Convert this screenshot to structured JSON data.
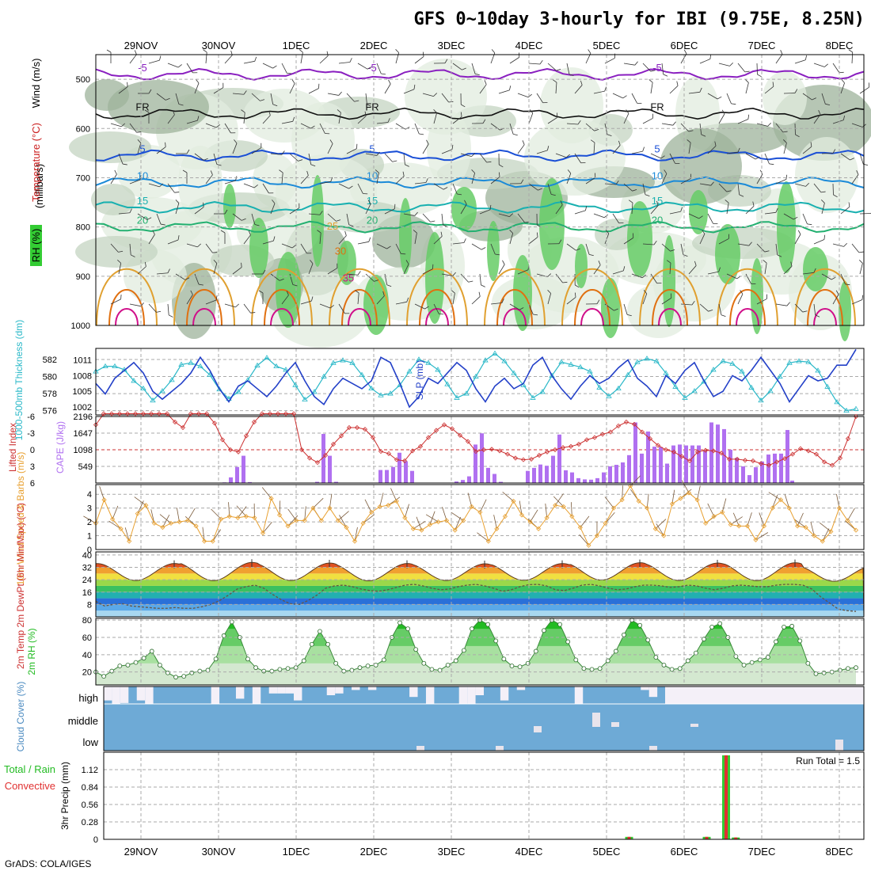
{
  "title": "GFS 0~10day 3-hourly for IBI (9.75E, 8.25N)",
  "credit": "GrADS: COLA/IGES",
  "colors": {
    "temp500": "#8a1fc0",
    "freeze": "#111111",
    "t5": "#1a4fd6",
    "t10": "#1b8ad8",
    "t15": "#18b0b0",
    "t20": "#22b070",
    "t25": "#e0a030",
    "t30": "#e07010",
    "t35": "#d0108a",
    "rh30": "#e2ecdf",
    "rh50": "#c4d4c2",
    "rh70": "#9db39b",
    "rh90": "#66cc66",
    "slp": "#2340c8",
    "thickness": "#2ab8c8",
    "cape": "#b070f0",
    "li": "#cc3030",
    "wind10": "#e8a030",
    "dewpt": "#665544",
    "rh2m": "#22bb22",
    "cloud": "#6eaad6",
    "cloudGap": "#f4f0f8",
    "precipTotal": "#33cc33",
    "precipConv": "#e03030"
  },
  "chart_data": [
    {
      "type": "contour",
      "panel": "upper-air cross-section",
      "xlabels": [
        "29NOV",
        "30NOV",
        "1DEC",
        "2DEC",
        "3DEC",
        "4DEC",
        "5DEC",
        "6DEC",
        "7DEC",
        "8DEC"
      ],
      "ylabel": "(millibars)",
      "side_labels": [
        "Wind (m/s)",
        "Temperature (°C)",
        "RH (%)"
      ],
      "yticks": [
        500,
        600,
        700,
        800,
        900,
        1000
      ],
      "ylim": [
        450,
        1000
      ],
      "isotherms": [
        {
          "label": "-5",
          "level": 490
        },
        {
          "label": "FR",
          "level": 570
        },
        {
          "label": "5",
          "level": 655
        },
        {
          "label": "10",
          "level": 710
        },
        {
          "label": "15",
          "level": 760
        },
        {
          "label": "20",
          "level": 800
        },
        {
          "label": "25",
          "level": 870
        },
        {
          "label": "30",
          "level": 920
        },
        {
          "label": "35",
          "level": 975
        }
      ],
      "rh_labels": [
        "30",
        "50"
      ]
    },
    {
      "type": "line",
      "panel": "thickness and slp",
      "left_label": "1000-500mb Thickness (dm)",
      "right_label": "SLP (mb)",
      "left_ticks": [
        576,
        578,
        580,
        582
      ],
      "right_ticks": [
        1002,
        1005,
        1008,
        1011
      ],
      "left_range": [
        575.5,
        583.3
      ],
      "right_range": [
        1000.5,
        1013.2
      ],
      "thickness": [
        580.6,
        581.2,
        581.2,
        580.8,
        579.5,
        578.6,
        577.2,
        578.3,
        579.6,
        581.4,
        581.6,
        581.2,
        580.2,
        578.5,
        577.4,
        578.2,
        579.6,
        581.3,
        582.2,
        581.2,
        580.8,
        579.0,
        577.3,
        578.2,
        580.0,
        581.6,
        581.9,
        581.6,
        580.2,
        578.6,
        577.8,
        578.0,
        579.0,
        580.6,
        582.0,
        581.6,
        580.8,
        579.1,
        577.5,
        578.0,
        580.0,
        581.9,
        582.7,
        581.8,
        580.4,
        579.0,
        577.5,
        578.2,
        580.1,
        581.7,
        581.4,
        581.1,
        580.6,
        578.7,
        577.7,
        578.6,
        580.2,
        581.7,
        582.1,
        581.8,
        580.4,
        578.8,
        577.5,
        578.3,
        579.4,
        580.8,
        581.8,
        581.5,
        580.6,
        578.7,
        577.2,
        578.3,
        580.0,
        581.6,
        581.8,
        581.7,
        580.7,
        578.8,
        577.0,
        576.0,
        576.2
      ],
      "slp": [
        1006.5,
        1004.5,
        1007.5,
        1009.0,
        1010.5,
        1008.5,
        1005.0,
        1003.5,
        1005.0,
        1006.5,
        1008.5,
        1011.5,
        1009.0,
        1005.5,
        1003.0,
        1006.0,
        1007.0,
        1005.5,
        1004.0,
        1006.0,
        1008.5,
        1010.5,
        1007.0,
        1004.0,
        1002.5,
        1005.5,
        1007.5,
        1006.5,
        1005.5,
        1007.0,
        1011.5,
        1010.5,
        1006.5,
        1002.0,
        1004.0,
        1007.5,
        1006.5,
        1008.5,
        1010.5,
        1009.0,
        1005.5,
        1003.0,
        1006.0,
        1007.5,
        1005.5,
        1006.5,
        1010.0,
        1011.5,
        1008.0,
        1005.5,
        1003.5,
        1006.0,
        1008.0,
        1006.5,
        1007.5,
        1009.5,
        1011.0,
        1007.5,
        1006.0,
        1004.0,
        1008.0,
        1006.5,
        1009.0,
        1010.5,
        1007.0,
        1004.0,
        1005.0,
        1008.0,
        1007.0,
        1009.0,
        1011.5,
        1009.0,
        1006.5,
        1003.0,
        1005.5,
        1008.0,
        1007.0,
        1007.5,
        1010.0,
        1010.0,
        1013.0
      ]
    },
    {
      "type": "bar+line",
      "panel": "cape and lifted index",
      "left_label": "Lifted Index",
      "right_label": "CAPE (J/kg)",
      "li_ticks": [
        -6,
        -3,
        0,
        3,
        6
      ],
      "cape_ticks": [
        549,
        1098,
        1647,
        2196
      ],
      "li_range": [
        -6,
        6
      ],
      "cape_range": [
        0,
        2196
      ],
      "cape": [
        0,
        0,
        0,
        0,
        0,
        0,
        0,
        0,
        0,
        0,
        0,
        0,
        0,
        0,
        0,
        0,
        0,
        0,
        0,
        0,
        0,
        0,
        0,
        0,
        0,
        0,
        0,
        0,
        0,
        0,
        0,
        0,
        0,
        0,
        0,
        0,
        0,
        0,
        0,
        0,
        0,
        0,
        0,
        0,
        0,
        0,
        0,
        0,
        0,
        0,
        0,
        0,
        0,
        0,
        0,
        0,
        0,
        0,
        0,
        0,
        0,
        0,
        0,
        0,
        0,
        0,
        0,
        0,
        0,
        0,
        0,
        0,
        0,
        0,
        0,
        0,
        0,
        0,
        0,
        0,
        0
      ],
      "li": [
        4.5,
        6.5,
        6.5,
        6.5,
        6.5,
        6.5,
        6.5,
        6.5,
        6.5,
        6.5,
        5.0,
        4.0,
        6.5,
        6.5,
        6.5,
        4.8,
        1.8,
        0.0,
        -0.4,
        2.5,
        5.0,
        6.5,
        6.5,
        6.5,
        6.5,
        6.5,
        0.0,
        -1.5,
        -2.3,
        -1.0,
        1.0,
        2.5,
        4.0,
        4.0,
        3.7,
        2.2,
        -0.3,
        -0.7,
        -1.8,
        -2.0,
        -0.2,
        0.6,
        2.2,
        3.5,
        4.5,
        3.8,
        2.6,
        1.5,
        -0.3,
        0.0,
        0.1,
        -0.2,
        -0.8,
        -1.5,
        -1.8,
        -1.7,
        -1.0,
        -0.4,
        0.0,
        0.4,
        0.6,
        1.0,
        1.8,
        2.2,
        2.8,
        3.2,
        4.3,
        5.0,
        4.6,
        3.2,
        2.0,
        0.8,
        0.0,
        -0.4,
        -1.2,
        -2.0,
        -0.4,
        -0.1,
        -0.2,
        -0.6,
        -1.7,
        -1.7,
        -1.9,
        -2.0,
        -2.5,
        -2.8,
        -2.2,
        -1.6,
        -0.8,
        0.2,
        -0.2,
        -0.8,
        -2.2,
        -2.8,
        -1.5,
        2.0,
        6.0
      ],
      "cape_bars": [
        0,
        0,
        0,
        0,
        0,
        0,
        0,
        0,
        0,
        0,
        0,
        0,
        0,
        0,
        0,
        0,
        0,
        0,
        0,
        0,
        0,
        0,
        0,
        0,
        0,
        0,
        0,
        0,
        0,
        0,
        0,
        0,
        0,
        0,
        0,
        0,
        0,
        0,
        0,
        0,
        0,
        0,
        0,
        0,
        0,
        0,
        0,
        0,
        0,
        0,
        0,
        0,
        0,
        0,
        0,
        0,
        0,
        0,
        0,
        0,
        0,
        0,
        0,
        0,
        0,
        0,
        0,
        0,
        0,
        0,
        0,
        0,
        0,
        0,
        0,
        0,
        0,
        0,
        0,
        0,
        0
      ]
    },
    {
      "type": "line",
      "panel": "10m wind",
      "ylabel": "10m Wind Speed & Barbs (m/s)",
      "yticks": [
        0,
        1,
        2,
        3,
        4
      ],
      "ylim": [
        0,
        4.7
      ],
      "speed": [
        1.9,
        3.6,
        2.2,
        1.5,
        0.6,
        2.6,
        3.2,
        1.9,
        1.6,
        1.9,
        2.0,
        2.1,
        1.7,
        0.6,
        0.6,
        2.2,
        2.4,
        2.3,
        2.4,
        2.3,
        1.2,
        3.7,
        2.5,
        1.7,
        2.1,
        2.1,
        3.0,
        2.1,
        3.0,
        2.1,
        1.6,
        0.6,
        1.9,
        2.7,
        3.1,
        3.2,
        3.5,
        2.3,
        1.5,
        1.4,
        1.8,
        2.0,
        2.1,
        1.4,
        2.1,
        3.1,
        2.7,
        0.6,
        1.5,
        2.4,
        3.5,
        2.5,
        2.0,
        1.5,
        2.3,
        3.2,
        3.1,
        2.4,
        1.6,
        0.3,
        1.0,
        1.9,
        3.0,
        3.6,
        4.6,
        3.5,
        3.0,
        1.5,
        1.0,
        3.3,
        3.7,
        4.1,
        3.6,
        1.9,
        2.4,
        2.7,
        1.8,
        1.7,
        1.7,
        0.7,
        1.7,
        3.0,
        3.6,
        3.0,
        1.7,
        1.6,
        1.0,
        0.6,
        1.3,
        3.0,
        2.1,
        1.4
      ]
    },
    {
      "type": "area",
      "panel": "2m temperature",
      "ylabel": "2m Temp 2m DewPt (6hr Min/Max) (°C)",
      "yticks": [
        8,
        16,
        24,
        32,
        40
      ],
      "ylim": [
        0,
        42
      ],
      "daily_max": [
        34.5,
        35.2,
        34.8,
        34.5,
        34.3,
        34.5,
        35.0,
        34.8,
        35.0,
        33.0
      ],
      "daily_min": [
        23.5,
        23.4,
        23.5,
        23.3,
        23.5,
        23.6,
        23.8,
        23.5,
        23.4,
        23.0
      ],
      "dewpoint": [
        10.0,
        7.0,
        8.0,
        8.5,
        7.0,
        6.5,
        6.0,
        5.5,
        5.5,
        6.0,
        5.5,
        5.5,
        6.5,
        8.0,
        10.5,
        14.0,
        18.0,
        19.5,
        20.5,
        18.5,
        14.5,
        11.0,
        8.5,
        8.0,
        10.5,
        14.0,
        18.5,
        20.0,
        20.5,
        19.5,
        18.0,
        17.0,
        16.5,
        17.5,
        19.0,
        20.5,
        21.0,
        20.0,
        18.5,
        17.5,
        18.0,
        19.5,
        20.5,
        21.0,
        20.0,
        18.5,
        16.5,
        17.5,
        19.5,
        20.8,
        21.0,
        20.0,
        17.5,
        17.0,
        18.5,
        20.5,
        21.0,
        20.0,
        18.5,
        17.5,
        18.0,
        19.5,
        20.5,
        20.5,
        20.0,
        19.0,
        19.5,
        20.5,
        20.0,
        18.5,
        17.5,
        18.5,
        20.0,
        20.5,
        20.0,
        19.5,
        19.5,
        20.5,
        21.0,
        21.0,
        20.5,
        18.0,
        13.0,
        9.0,
        5.0,
        4.0,
        3.5
      ]
    },
    {
      "type": "area",
      "panel": "2m relative humidity",
      "ylabel": "2m RH (%)",
      "yticks": [
        20,
        40,
        60,
        80
      ],
      "ylim": [
        5,
        82
      ],
      "values": [
        20,
        15,
        21,
        27,
        28,
        31,
        36,
        44,
        28,
        19,
        14,
        15,
        19,
        21,
        22,
        35,
        62,
        78,
        60,
        35,
        25,
        21,
        21,
        23,
        24,
        25,
        33,
        52,
        67,
        52,
        30,
        21,
        22,
        25,
        27,
        28,
        34,
        60,
        77,
        70,
        46,
        30,
        23,
        22,
        28,
        33,
        45,
        70,
        80,
        75,
        56,
        35,
        27,
        26,
        30,
        44,
        68,
        80,
        75,
        55,
        34,
        24,
        23,
        24,
        33,
        44,
        63,
        80,
        74,
        57,
        37,
        28,
        23,
        24,
        33,
        42,
        58,
        72,
        76,
        60,
        38,
        28,
        31,
        34,
        37,
        55,
        72,
        73,
        56,
        30,
        18,
        19,
        20,
        22,
        24,
        25
      ]
    },
    {
      "type": "bar",
      "panel": "cloud cover",
      "ylabel": "Cloud Cover (%)",
      "levels": [
        "high",
        "middle",
        "low"
      ],
      "high_gap": [
        80,
        100,
        95,
        0,
        80,
        100,
        0,
        0,
        0,
        0,
        0,
        0,
        0,
        100,
        0,
        0,
        70,
        0,
        100,
        0,
        40,
        40,
        40,
        80,
        0,
        0,
        0,
        50,
        40,
        0,
        20,
        0,
        20,
        0,
        0,
        0,
        0,
        60,
        0,
        100,
        0,
        0,
        0,
        100,
        100,
        50,
        0,
        0,
        80,
        0,
        20,
        0,
        0,
        0,
        0,
        0,
        0,
        100,
        0,
        0,
        0,
        0,
        0,
        0,
        0,
        20,
        60,
        0,
        20,
        60,
        0,
        0,
        0,
        0,
        0,
        80,
        0,
        0,
        0,
        0,
        0,
        90,
        40,
        60,
        60,
        0,
        90,
        0,
        0,
        30,
        20,
        0
      ],
      "middle_gap": [
        0,
        0,
        0,
        0,
        0,
        0,
        0,
        0,
        0,
        0,
        0,
        0,
        0,
        0,
        0,
        0,
        0,
        0,
        0,
        0,
        0,
        0,
        0,
        0,
        0,
        0,
        0,
        0,
        0,
        0,
        0,
        0,
        0,
        0,
        0,
        0,
        0,
        0,
        0,
        0,
        0,
        0,
        0,
        0,
        0,
        0,
        0,
        0,
        0,
        0,
        0,
        0,
        0,
        0,
        0,
        0,
        0,
        0,
        0,
        0,
        0,
        0,
        0,
        0,
        0,
        0,
        0,
        0,
        0,
        0,
        0,
        0,
        0,
        0,
        0,
        0,
        0,
        0,
        0,
        0,
        0,
        0,
        0,
        0,
        0,
        0,
        0,
        0,
        0,
        0,
        0,
        0
      ],
      "low_gap": [
        0,
        0,
        0,
        0,
        0,
        0,
        0,
        0,
        0,
        0,
        0,
        0,
        0,
        0,
        0,
        0,
        0,
        0,
        0,
        0,
        0,
        0,
        0,
        0,
        0,
        0,
        0,
        0,
        0,
        0,
        0,
        0,
        0,
        0,
        0,
        0,
        0,
        0,
        0,
        0,
        0,
        0,
        0,
        0,
        0,
        0,
        0,
        0,
        0,
        0,
        0,
        0,
        0,
        0,
        0,
        0,
        0,
        0,
        0,
        0,
        0,
        0,
        0,
        0,
        0,
        0,
        0,
        0,
        0,
        0,
        0,
        0,
        0,
        0,
        0,
        0,
        0,
        0,
        0,
        0,
        0,
        0,
        0,
        0,
        0,
        0,
        0,
        0,
        0,
        0,
        0,
        0
      ]
    },
    {
      "type": "bar",
      "panel": "precipitation",
      "left_label": "Total / Rain",
      "left_label2": "Convective",
      "ylabel": "3hr Precip (mm)",
      "yticks": [
        0,
        0.28,
        0.56,
        0.84,
        1.12
      ],
      "ylim": [
        0,
        1.4
      ],
      "run_total": "Run Total = 1.5",
      "bars": [
        {
          "slot": 54,
          "total": 0.04,
          "convective": 0.04
        },
        {
          "slot": 62,
          "total": 0.04,
          "convective": 0.04
        },
        {
          "slot": 64,
          "total": 1.35,
          "convective": 1.35
        },
        {
          "slot": 65,
          "total": 0.03,
          "convective": 0.03
        }
      ]
    }
  ]
}
